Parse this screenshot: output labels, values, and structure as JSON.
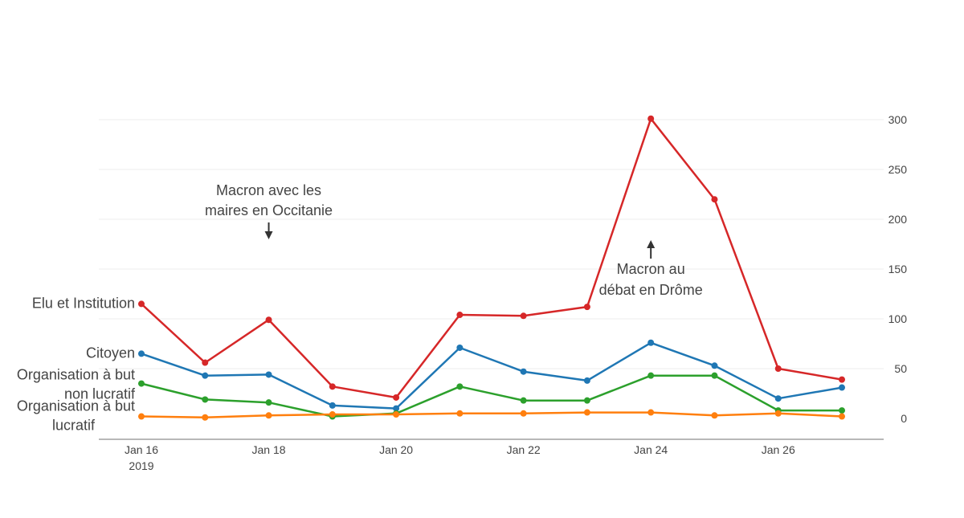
{
  "chart_data": {
    "type": "line",
    "title": "",
    "xlabel": "",
    "ylabel": "",
    "x": [
      "2019-01-16",
      "2019-01-17",
      "2019-01-18",
      "2019-01-19",
      "2019-01-20",
      "2019-01-21",
      "2019-01-22",
      "2019-01-23",
      "2019-01-24",
      "2019-01-25",
      "2019-01-26",
      "2019-01-27"
    ],
    "x_ticks": [
      {
        "x": "2019-01-16",
        "label": "Jan 16",
        "sublabel": "2019"
      },
      {
        "x": "2019-01-18",
        "label": "Jan 18"
      },
      {
        "x": "2019-01-20",
        "label": "Jan 20"
      },
      {
        "x": "2019-01-22",
        "label": "Jan 22"
      },
      {
        "x": "2019-01-24",
        "label": "Jan 24"
      },
      {
        "x": "2019-01-26",
        "label": "Jan 26"
      }
    ],
    "y_ticks": [
      0,
      50,
      100,
      150,
      200,
      250,
      300
    ],
    "ylim": [
      -20,
      300
    ],
    "grid": true,
    "y_axis_side": "right",
    "legend": "inline-left",
    "series": [
      {
        "name": "Elu et Institution",
        "color": "#d62728",
        "values": [
          115,
          56,
          99,
          32,
          21,
          104,
          103,
          112,
          301,
          220,
          50,
          39
        ]
      },
      {
        "name": "Citoyen",
        "color": "#1f77b4",
        "values": [
          65,
          43,
          44,
          13,
          10,
          71,
          47,
          38,
          76,
          53,
          20,
          31
        ]
      },
      {
        "name": "Organisation à but non lucratif",
        "color": "#2ca02c",
        "values": [
          35,
          19,
          16,
          2,
          5,
          32,
          18,
          18,
          43,
          43,
          8,
          8
        ]
      },
      {
        "name": "Organisation à but lucratif",
        "color": "#ff7f0e",
        "values": [
          2,
          1,
          3,
          4,
          4,
          5,
          5,
          6,
          6,
          3,
          5,
          2
        ]
      }
    ],
    "annotations": [
      {
        "x": "2019-01-18",
        "lines": [
          "Macron avec les",
          "maires en Occitanie"
        ],
        "arrow": "down",
        "placement": "above"
      },
      {
        "x": "2019-01-24",
        "lines": [
          "Macron au",
          "débat en Drôme"
        ],
        "arrow": "up",
        "placement": "below"
      }
    ]
  }
}
